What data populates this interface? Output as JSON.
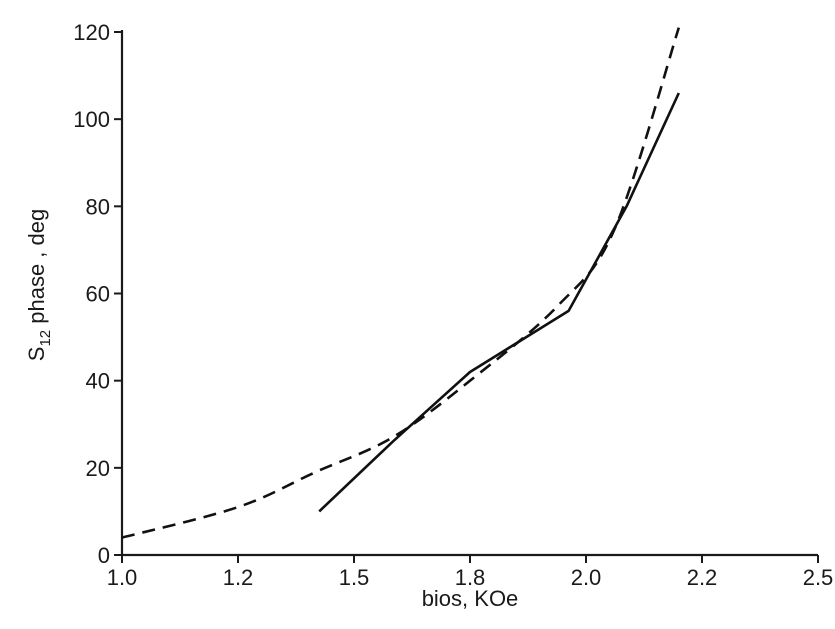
{
  "chart_data": {
    "type": "line",
    "xlabel": "bios, KOe",
    "ylabel_main": "S",
    "ylabel_sub": "12",
    "ylabel_rest": " phase , deg",
    "x_ticks": [
      "1.0",
      "1.2",
      "1.5",
      "1.8",
      "2.0",
      "2.2",
      "2.5"
    ],
    "y_ticks": [
      "0",
      "20",
      "40",
      "60",
      "80",
      "100",
      "120"
    ],
    "ylim": [
      0,
      120
    ],
    "grid": false,
    "series": [
      {
        "style": "solid",
        "points": [
          {
            "x": 1.41,
            "y": 10
          },
          {
            "x": 1.6,
            "y": 26
          },
          {
            "x": 1.8,
            "y": 42
          },
          {
            "x": 1.97,
            "y": 56
          },
          {
            "x": 2.07,
            "y": 80
          },
          {
            "x": 2.16,
            "y": 106
          }
        ]
      },
      {
        "style": "dashed",
        "points": [
          {
            "x": 1.0,
            "y": 4
          },
          {
            "x": 1.2,
            "y": 11
          },
          {
            "x": 1.4,
            "y": 19
          },
          {
            "x": 1.6,
            "y": 27
          },
          {
            "x": 1.8,
            "y": 40
          },
          {
            "x": 1.95,
            "y": 57
          },
          {
            "x": 2.05,
            "y": 75
          },
          {
            "x": 2.16,
            "y": 121
          }
        ]
      }
    ]
  }
}
